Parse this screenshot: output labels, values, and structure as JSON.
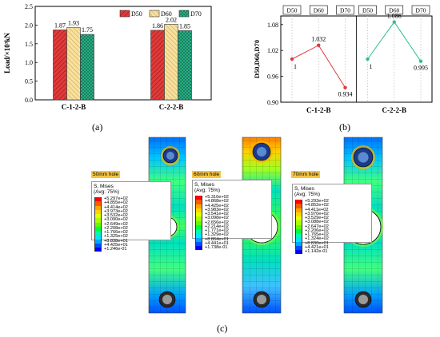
{
  "chart_data": [
    {
      "type": "bar",
      "ylabel": "Load/×10³kN",
      "categories": [
        "C-1-2-B",
        "C-2-2-B"
      ],
      "series": [
        {
          "name": "D50",
          "values": [
            1.87,
            1.86
          ],
          "color": "#e03a3a"
        },
        {
          "name": "D60",
          "values": [
            1.93,
            2.02
          ],
          "color": "#f7e0a0"
        },
        {
          "name": "D70",
          "values": [
            1.75,
            1.85
          ],
          "color": "#2fbf8f"
        }
      ],
      "value_labels": [
        [
          "1.87",
          "1.93",
          "1.75"
        ],
        [
          "1.86",
          "2.02",
          "1.85"
        ]
      ],
      "ylim": [
        0,
        2.5
      ],
      "yticks": [
        "0.0",
        "0.5",
        "1.0",
        "1.5",
        "2.0",
        "2.5"
      ],
      "legend": "top-right",
      "caption": "(a)"
    },
    {
      "type": "line",
      "ylabel": "D50,D60,D70",
      "groups": [
        {
          "name": "C-1-2-B",
          "x": [
            "D50",
            "D60",
            "D70"
          ],
          "values": [
            1,
            1.032,
            0.934
          ],
          "labels": [
            "1",
            "1.032",
            "0.934"
          ],
          "color": "#e03a3a"
        },
        {
          "name": "C-2-2-B",
          "x": [
            "D50",
            "D60",
            "D70"
          ],
          "values": [
            1,
            1.086,
            0.995
          ],
          "labels": [
            "1",
            "1.086",
            "0.995"
          ],
          "color": "#2fbf8f"
        }
      ],
      "ylim": [
        0.9,
        1.1
      ],
      "yticks": [
        "0.90",
        "0.96",
        "1.02",
        "1.08"
      ],
      "grid": "vertical dotted",
      "caption": "(b)"
    }
  ],
  "fea": {
    "caption": "(c)",
    "panels": [
      {
        "tag": "50mm hole",
        "title": "S, Mises",
        "sub": "(Avg: 75%)",
        "values": [
          "+5.297e+02",
          "+4.855e+02",
          "+4.414e+02",
          "+3.973e+02",
          "+3.532e+02",
          "+3.090e+02",
          "+2.649e+02",
          "+2.208e+02",
          "+1.766e+02",
          "+1.325e+02",
          "+8.838e+01",
          "+4.425e+01",
          "+1.246e-01"
        ]
      },
      {
        "tag": "60mm hole",
        "title": "S, Mises",
        "sub": "(Avg: 75%)",
        "values": [
          "+5.310e+02",
          "+4.868e+02",
          "+4.425e+02",
          "+3.983e+02",
          "+3.541e+02",
          "+3.098e+02",
          "+2.656e+02",
          "+2.214e+02",
          "+1.771e+02",
          "+1.329e+02",
          "+8.864e+01",
          "+4.441e+01",
          "+1.738e-01"
        ]
      },
      {
        "tag": "70mm hole",
        "title": "S, Mises",
        "sub": "(Avg: 75%)",
        "values": [
          "+5.293e+02",
          "+4.852e+02",
          "+4.411e+02",
          "+3.970e+02",
          "+3.529e+02",
          "+3.088e+02",
          "+2.647e+02",
          "+2.206e+02",
          "+1.765e+02",
          "+1.324e+02",
          "+8.830e+01",
          "+4.421e+01",
          "+1.142e-01"
        ]
      }
    ],
    "scale_colors": [
      "#ff0000",
      "#ff5a00",
      "#ffa500",
      "#ffd400",
      "#e6ff00",
      "#a8ff00",
      "#5cff00",
      "#00ff40",
      "#00ffa8",
      "#00e6ff",
      "#00a8ff",
      "#0050ff",
      "#0000ff"
    ]
  }
}
